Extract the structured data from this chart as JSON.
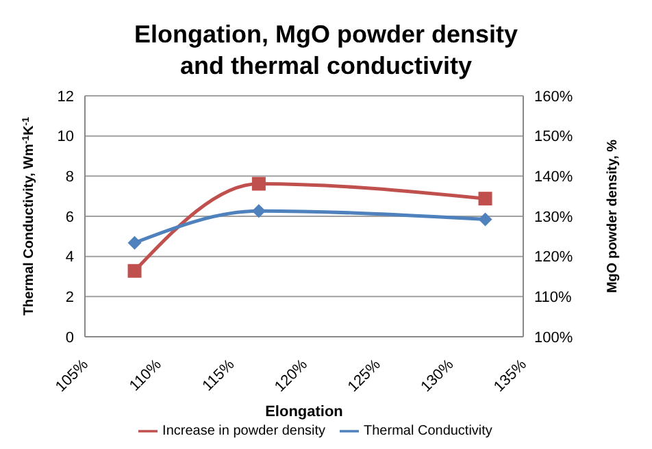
{
  "chart_data": {
    "type": "line",
    "title": "Elongation, MgO powder density and thermal conductivity",
    "xlabel": "Elongation",
    "ylabel": "Thermal Conductivity, Wm$^{-1}$K$^{-1}$",
    "y2label": "MgO powder density, %",
    "x": [
      108.4,
      116.9,
      132.4
    ],
    "series": [
      {
        "name": "Increase in powder density",
        "color": "#c0504d",
        "axis": "y2",
        "marker": "square",
        "values": [
          116.4,
          138.1,
          134.4
        ]
      },
      {
        "name": "Thermal Conductivity",
        "color": "#4f81bd",
        "marker": "diamond",
        "values": [
          4.68,
          6.26,
          5.85
        ]
      }
    ],
    "xlim": [
      105,
      135
    ],
    "xticks": [
      {
        "value": 105,
        "label": "105%"
      },
      {
        "value": 110,
        "label": "110%"
      },
      {
        "value": 115,
        "label": "115%"
      },
      {
        "value": 120,
        "label": "120%"
      },
      {
        "value": 125,
        "label": "125%"
      },
      {
        "value": 130,
        "label": "130%"
      },
      {
        "value": 135,
        "label": "135%"
      }
    ],
    "ylim": [
      0,
      12
    ],
    "yticks": [
      0,
      2,
      4,
      6,
      8,
      10,
      12
    ],
    "y2lim": [
      100,
      160
    ],
    "y2ticks": [
      {
        "value": 100,
        "label": "100%"
      },
      {
        "value": 110,
        "label": "110%"
      },
      {
        "value": 120,
        "label": "120%"
      },
      {
        "value": 130,
        "label": "130%"
      },
      {
        "value": 140,
        "label": "140%"
      },
      {
        "value": 150,
        "label": "150%"
      },
      {
        "value": 160,
        "label": "160%"
      }
    ],
    "grid": "y",
    "legend": "bottom",
    "line_style": "solid"
  }
}
